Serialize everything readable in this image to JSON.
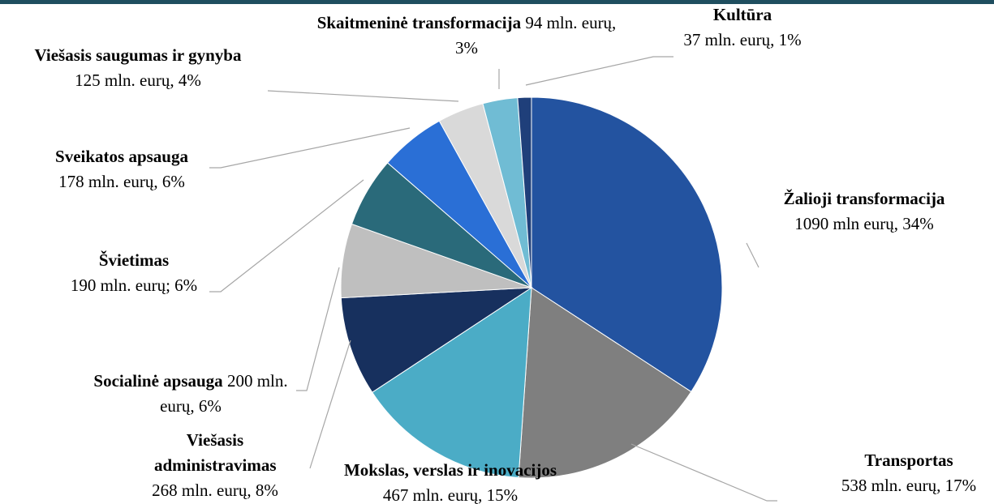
{
  "chart_data": {
    "type": "pie",
    "categories": [
      "Žalioji transformacija",
      "Transportas",
      "Mokslas, verslas ir inovacijos",
      "Viešasis administravimas",
      "Socialinė apsauga",
      "Švietimas",
      "Sveikatos apsauga",
      "Viešasis saugumas ir gynyba",
      "Skaitmeninė transformacija",
      "Kultūra"
    ],
    "values": [
      1090,
      538,
      467,
      268,
      200,
      190,
      178,
      125,
      94,
      37
    ],
    "value_labels": [
      "1090 mln eurų, 34%",
      "538 mln. eurų, 17%",
      "467 mln. eurų, 15%",
      "268 mln. eurų, 8%",
      "200 mln. eurų, 6%",
      "190 mln. eurų; 6%",
      "178 mln. eurų, 6%",
      "125 mln. eurų, 4%",
      "94 mln. eurų, 3%",
      "37 mln. eurų, 1%"
    ],
    "colors": [
      "#2353a0",
      "#7f7f7f",
      "#4bacc6",
      "#17305e",
      "#bfbfbf",
      "#2a6a7a",
      "#2a6fd6",
      "#d9d9d9",
      "#70bcd4",
      "#1f3f7a"
    ]
  }
}
